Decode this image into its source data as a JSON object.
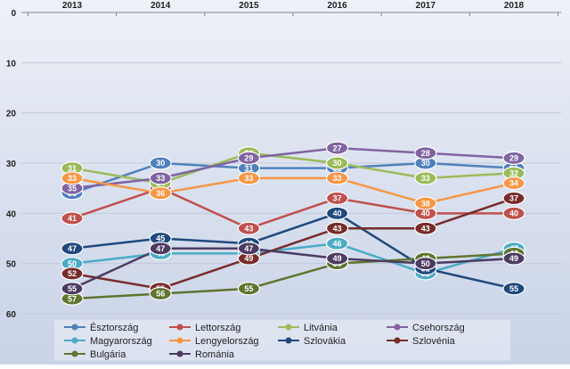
{
  "chart_data": {
    "type": "line",
    "x": [
      "2013",
      "2014",
      "2015",
      "2016",
      "2017",
      "2018"
    ],
    "ylim": [
      0,
      60
    ],
    "y_reversed": true,
    "y_ticks": [
      0,
      10,
      20,
      30,
      40,
      50,
      60
    ],
    "grid": true,
    "legend_position": "bottom",
    "series": [
      {
        "name": "Észtország",
        "color": "#4f81bd",
        "values": [
          36,
          30,
          31,
          31,
          30,
          31
        ]
      },
      {
        "name": "Lettország",
        "color": "#c0504d",
        "values": [
          41,
          35,
          43,
          37,
          40,
          40
        ]
      },
      {
        "name": "Litvánia",
        "color": "#9bbb59",
        "values": [
          31,
          34,
          28,
          30,
          33,
          32
        ]
      },
      {
        "name": "Csehország",
        "color": "#8064a2",
        "values": [
          35,
          33,
          29,
          27,
          28,
          29
        ]
      },
      {
        "name": "Magyarország",
        "color": "#4bacc6",
        "values": [
          50,
          48,
          48,
          46,
          52,
          47
        ]
      },
      {
        "name": "Lengyelország",
        "color": "#f79646",
        "values": [
          33,
          36,
          33,
          33,
          38,
          34
        ]
      },
      {
        "name": "Szlovákia",
        "color": "#1f497d",
        "values": [
          47,
          45,
          46,
          40,
          51,
          55
        ]
      },
      {
        "name": "Szlovénia",
        "color": "#772c2a",
        "values": [
          52,
          55,
          49,
          43,
          43,
          37
        ]
      },
      {
        "name": "Bulgária",
        "color": "#5f7530",
        "values": [
          57,
          56,
          55,
          50,
          49,
          48
        ]
      },
      {
        "name": "Románia",
        "color": "#4d3b62",
        "values": [
          55,
          47,
          47,
          49,
          50,
          49
        ]
      }
    ]
  }
}
